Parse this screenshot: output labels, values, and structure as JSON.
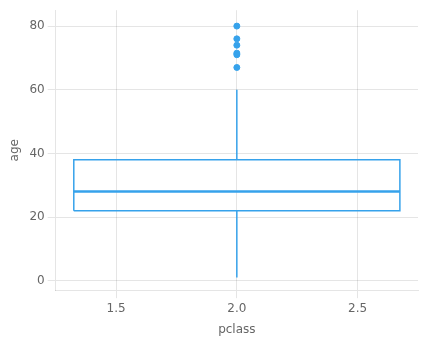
{
  "chart_data": {
    "type": "box",
    "xlabel": "pclass",
    "ylabel": "age",
    "boxes": [
      {
        "x": 2.0,
        "q1": 22.0,
        "median": 28.0,
        "q3": 38.0,
        "whisker_low": 1.0,
        "whisker_high": 60.0,
        "outliers": [
          67.0,
          71.0,
          71.5,
          74.0,
          76.0,
          80.0
        ]
      }
    ],
    "xlim": [
      1.25,
      2.75
    ],
    "ylim": [
      -3,
      85
    ],
    "xticks": [
      1.5,
      {
        "value": 2.0,
        "label": "2.0"
      },
      2.5
    ],
    "yticks": [
      0,
      20,
      40,
      60,
      80
    ],
    "grid": true
  }
}
